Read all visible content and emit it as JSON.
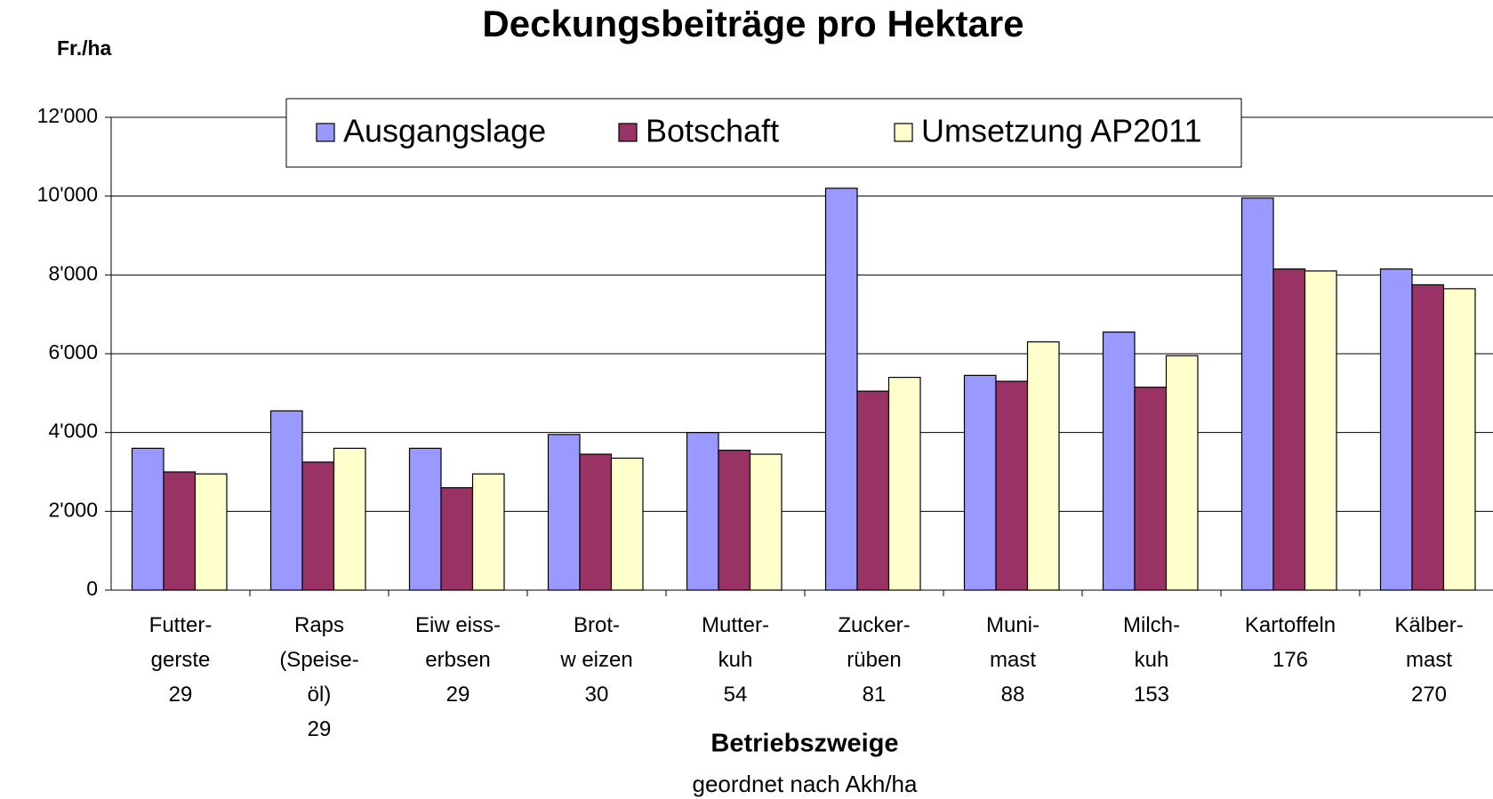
{
  "chart_data": {
    "type": "bar",
    "title": "Deckungsbeiträge pro Hektare",
    "y_axis_label": "Fr./ha",
    "x_axis_label": "Betriebszweige",
    "x_axis_subtitle": "geordnet nach Akh/ha",
    "categories": [
      "Futter-\ngerste\n29",
      "Raps\n(Speise-\nöl)\n29",
      "Eiw eiss-\nerbsen\n29",
      "Brot-\nw eizen\n30",
      "Mutter-\nkuh\n54",
      "Zucker-\nrüben\n81",
      "Muni-\nmast\n88",
      "Milch-\nkuh\n153",
      "Kartoffeln\n176",
      "Kälber-\nmast\n270"
    ],
    "series": [
      {
        "name": "Ausgangslage",
        "color": "#9999ff",
        "values": [
          3600,
          4550,
          3600,
          3950,
          4000,
          10200,
          5450,
          6550,
          9950,
          8150
        ]
      },
      {
        "name": "Botschaft",
        "color": "#993366",
        "values": [
          3000,
          3250,
          2600,
          3450,
          3550,
          5050,
          5300,
          5150,
          8150,
          7750
        ]
      },
      {
        "name": "Umsetzung AP2011",
        "color": "#ffffcc",
        "values": [
          2950,
          3600,
          2950,
          3350,
          3450,
          5400,
          6300,
          5950,
          8100,
          7650
        ]
      }
    ],
    "ylim": [
      0,
      12000
    ],
    "yticks": [
      0,
      {
        "value": 2000,
        "label": "2'000"
      },
      {
        "value": 4000,
        "label": "4'000"
      },
      {
        "value": 6000,
        "label": "6'000"
      },
      {
        "value": 8000,
        "label": "8'000"
      },
      {
        "value": 10000,
        "label": "10'000"
      },
      {
        "value": 12000,
        "label": "12'000"
      }
    ],
    "grid": true,
    "legend": "top"
  }
}
